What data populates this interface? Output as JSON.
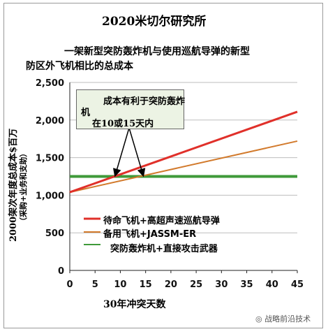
{
  "header": {
    "org": "2020米切尔研究所"
  },
  "chart_data": {
    "type": "line",
    "title_line1": "一架新型突防轰炸机与使用巡航导弹的新型",
    "title_line2": "防区外飞机相比的总成本",
    "xlabel": "30年冲突天数",
    "ylabel_main": "2000架次年度总成本$百万",
    "ylabel_sub": "（采购+业务和支助）",
    "xlim": [
      0,
      45
    ],
    "ylim": [
      0,
      2500
    ],
    "x_ticks": [
      0,
      5,
      10,
      15,
      20,
      25,
      30,
      35,
      40,
      45
    ],
    "y_ticks": [
      0,
      500,
      1000,
      1500,
      2000,
      2500
    ],
    "y_tick_labels": [
      "0",
      "500",
      "1,000",
      "1,500",
      "2,000",
      "2,500"
    ],
    "series": [
      {
        "name": "待命飞机+高超声速巡航导弹",
        "color": "#e0302a",
        "x": [
          0,
          45
        ],
        "y": [
          1040,
          2110
        ]
      },
      {
        "name": "备用飞机+JASSM-ER",
        "color": "#d27a2c",
        "x": [
          0,
          45
        ],
        "y": [
          1040,
          1720
        ]
      },
      {
        "name": "突防轰炸机+直接攻击武器",
        "color": "#3f9a3a",
        "x": [
          0,
          45
        ],
        "y": [
          1250,
          1250
        ]
      }
    ],
    "annotation": {
      "line1": "成本有利于突防轰炸",
      "line2": "机",
      "line3": "在10或15天内",
      "points": [
        [
          9,
          1250
        ],
        [
          14.5,
          1250
        ]
      ]
    },
    "legend_labels": {
      "s1": "待命飞机+高超声速巡航导弹",
      "s2": "备用飞机+JASSM-ER",
      "s3": "突防轰炸机+直接攻击武器"
    }
  },
  "watermark": "战略前沿技术"
}
